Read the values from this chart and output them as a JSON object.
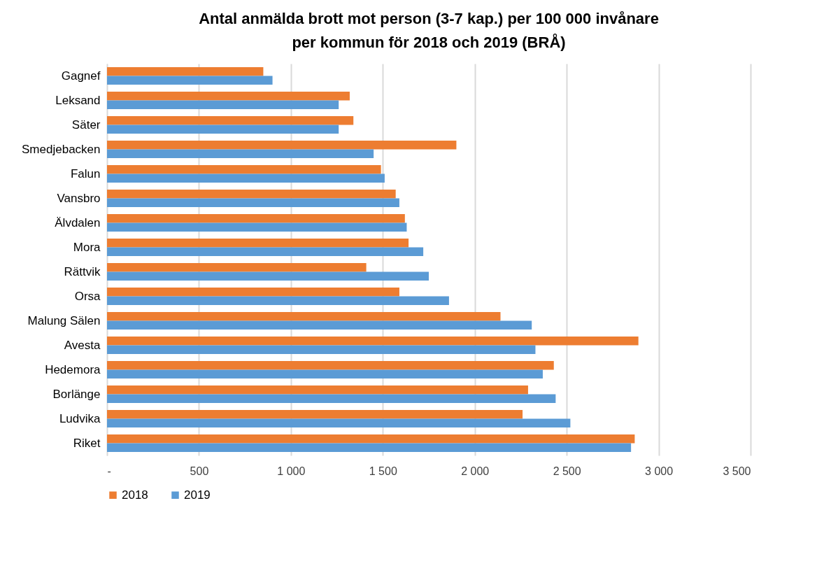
{
  "chart_data": {
    "type": "bar",
    "orientation": "horizontal",
    "title": "Antal anmälda brott mot person (3-7 kap.) per 100 000 invånare per kommun för 2018 och 2019 (BRÅ)",
    "categories": [
      "Gagnef",
      "Leksand",
      "Säter",
      "Smedjebacken",
      "Falun",
      "Vansbro",
      "Älvdalen",
      "Mora",
      "Rättvik",
      "Orsa",
      "Malung Sälen",
      "Avesta",
      "Hedemora",
      "Borlänge",
      "Ludvika",
      "Riket"
    ],
    "series": [
      {
        "name": "2018",
        "color": "#ed7d31",
        "values": [
          850,
          1320,
          1340,
          1900,
          1490,
          1570,
          1620,
          1640,
          1410,
          1590,
          2140,
          2890,
          2430,
          2290,
          2260,
          2870
        ]
      },
      {
        "name": "2019",
        "color": "#5b9bd5",
        "values": [
          900,
          1260,
          1260,
          1450,
          1510,
          1590,
          1630,
          1720,
          1750,
          1860,
          2310,
          2330,
          2370,
          2440,
          2520,
          2850
        ]
      }
    ],
    "xlim": [
      0,
      3500
    ],
    "xticks": [
      {
        "value": 0,
        "label": "-"
      },
      500,
      {
        "value": 1000,
        "label": "1 000"
      },
      {
        "value": 1500,
        "label": "1 500"
      },
      {
        "value": 2000,
        "label": "2 000"
      },
      {
        "value": 2500,
        "label": "2 500"
      },
      {
        "value": 3000,
        "label": "3 000"
      },
      {
        "value": 3500,
        "label": "3 500"
      }
    ],
    "grid": "x",
    "legend": "bottom"
  }
}
